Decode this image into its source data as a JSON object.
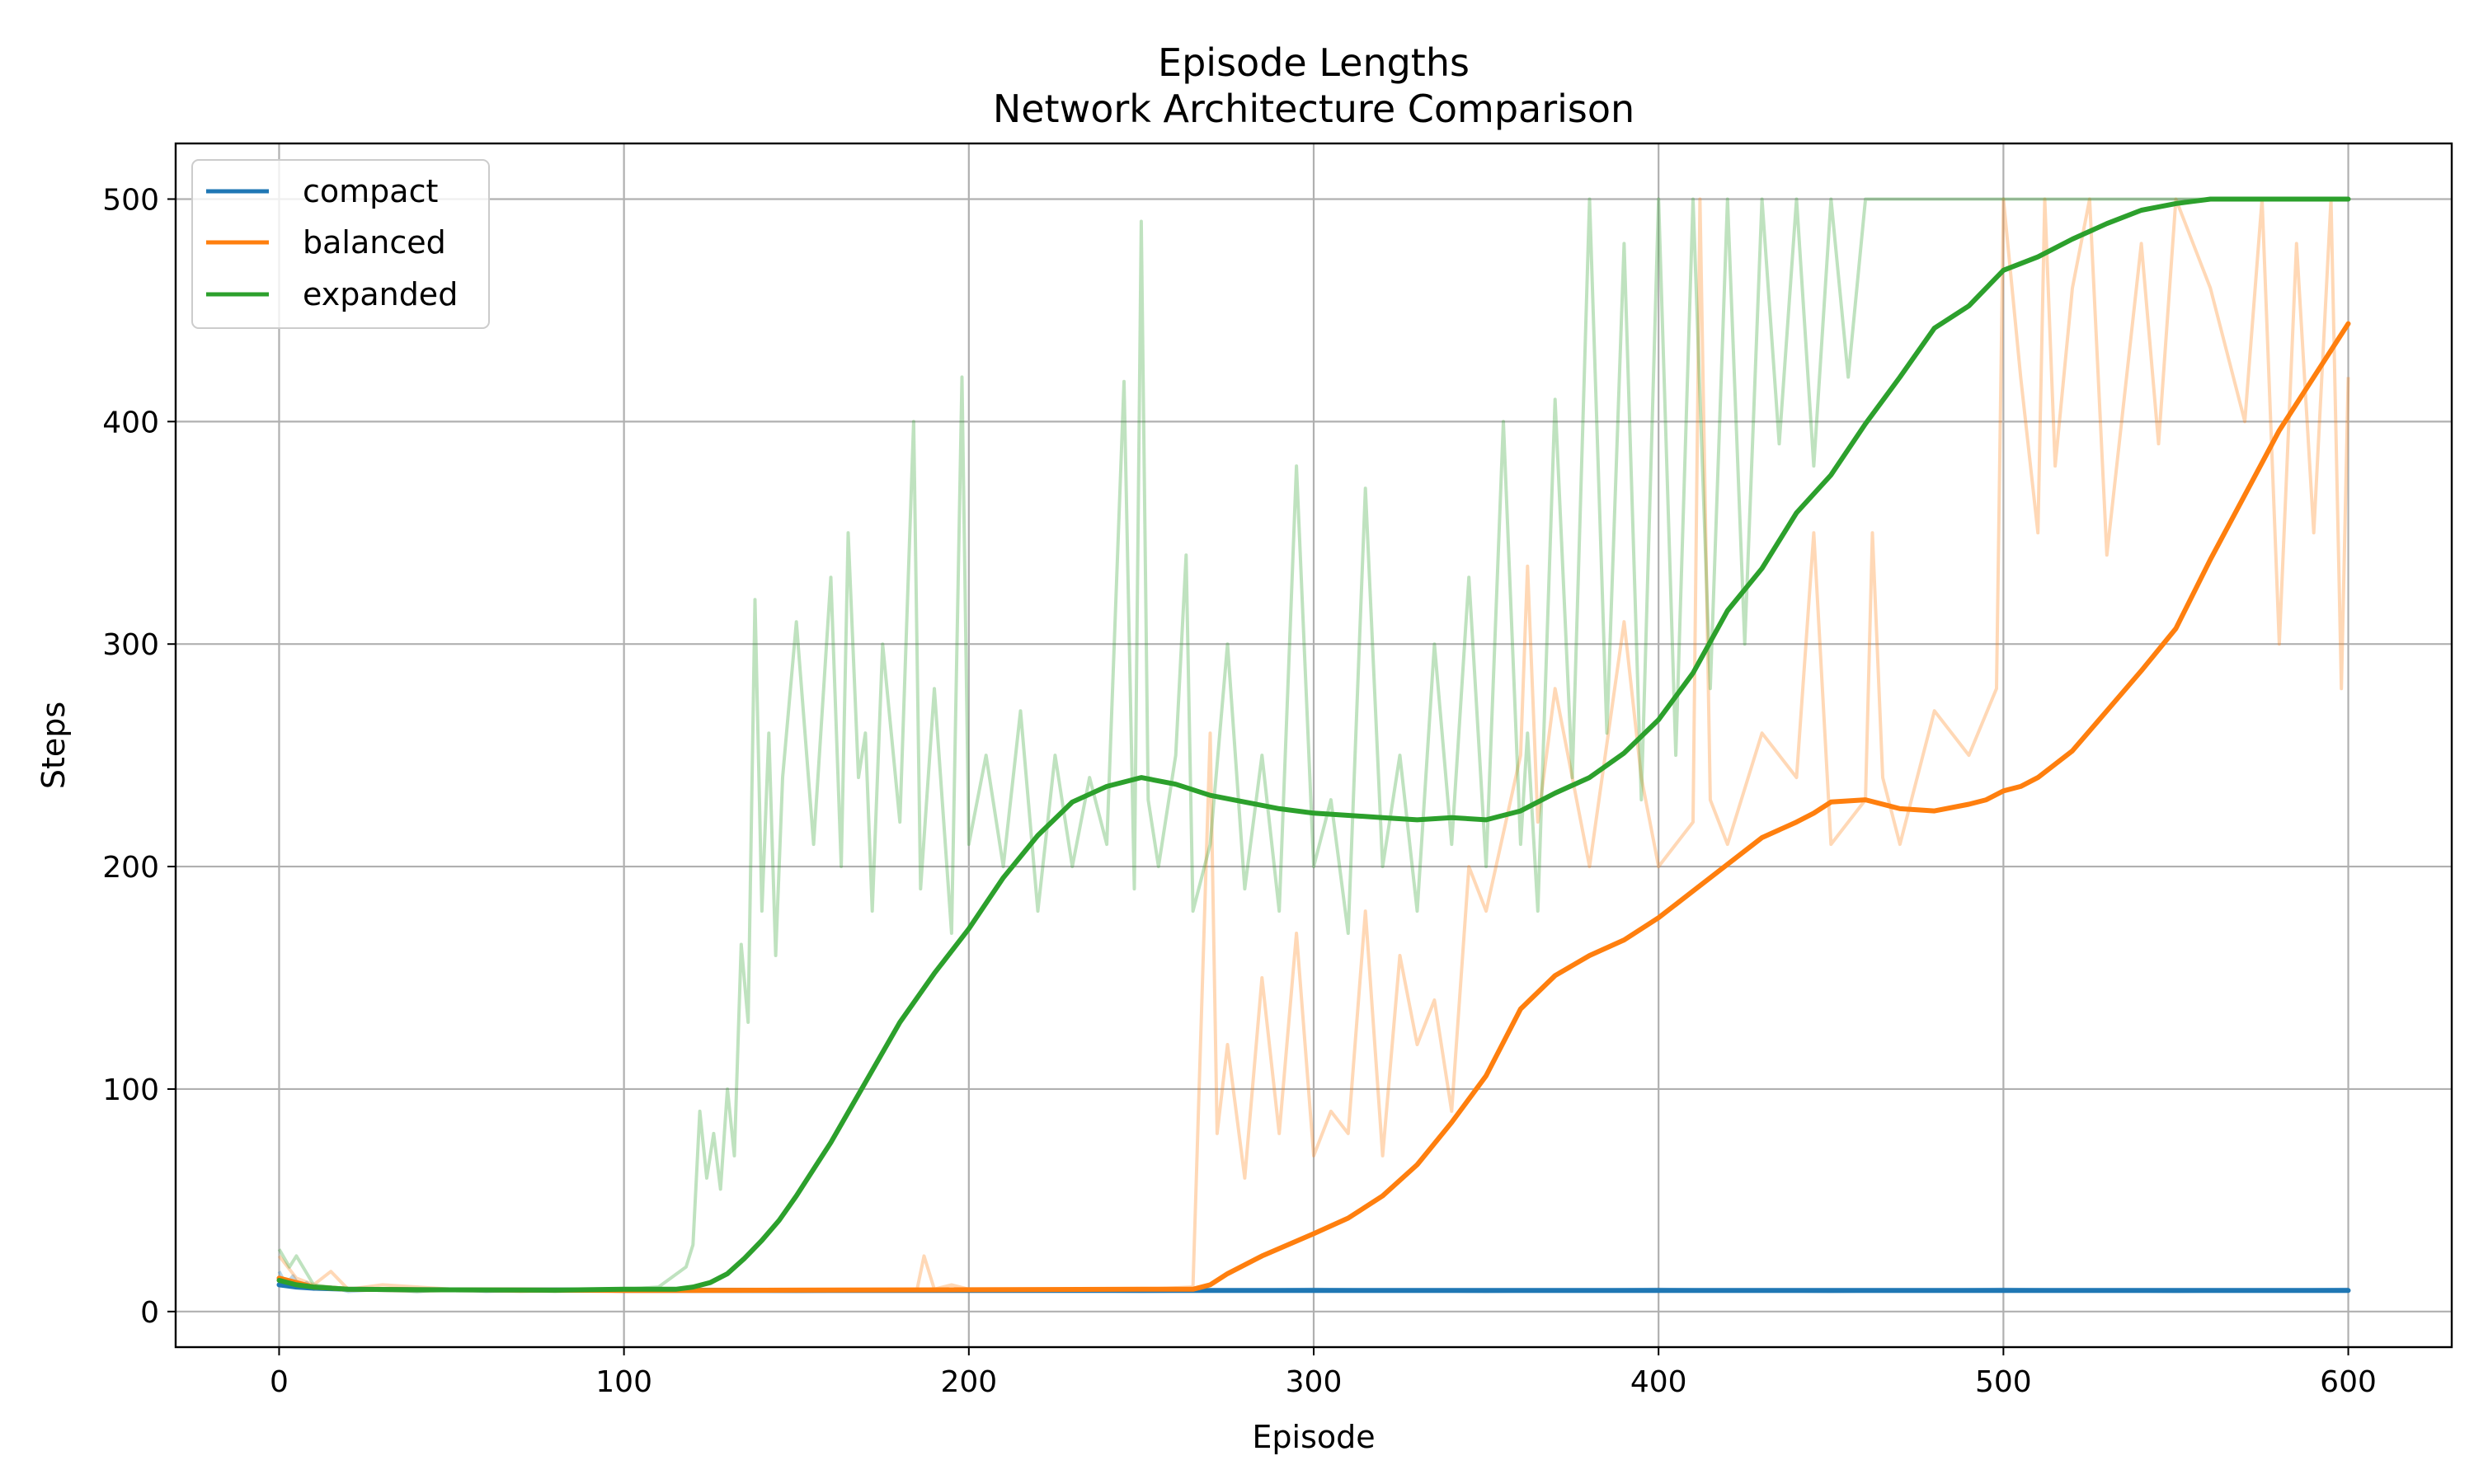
{
  "chart_data": {
    "type": "line",
    "title": "Episode Lengths",
    "subtitle": "Network Architecture Comparison",
    "xlabel": "Episode",
    "ylabel": "Steps",
    "xlim": [
      -30,
      630
    ],
    "ylim": [
      -16,
      525
    ],
    "xticks": [
      0,
      100,
      200,
      300,
      400,
      500,
      600
    ],
    "yticks": [
      0,
      100,
      200,
      300,
      400,
      500
    ],
    "grid": true,
    "legend_position": "top-left",
    "colors": {
      "compact": "#1f77b4",
      "balanced": "#ff7f0e",
      "expanded": "#2ca02c"
    },
    "series": [
      {
        "name": "compact",
        "smoothed": {
          "x": [
            0,
            5,
            10,
            20,
            40,
            60,
            80,
            100,
            150,
            200,
            250,
            300,
            350,
            400,
            450,
            500,
            550,
            600
          ],
          "y": [
            12,
            11,
            10.5,
            10,
            9.8,
            9.7,
            9.7,
            9.6,
            9.5,
            9.5,
            9.5,
            9.5,
            9.5,
            9.5,
            9.5,
            9.5,
            9.5,
            9.5
          ]
        },
        "raw": {
          "x": [
            0,
            2,
            4,
            6,
            8,
            10,
            15,
            20,
            30,
            40,
            50,
            60,
            80,
            100,
            150,
            200,
            250,
            300,
            350,
            400,
            450,
            500,
            550,
            600
          ],
          "y": [
            18,
            12,
            16,
            11,
            13,
            10,
            11,
            9,
            10,
            9,
            10,
            9,
            10,
            9,
            9,
            10,
            9,
            10,
            9,
            10,
            9,
            10,
            9,
            10
          ]
        }
      },
      {
        "name": "balanced",
        "smoothed": {
          "x": [
            0,
            5,
            10,
            20,
            40,
            60,
            80,
            100,
            120,
            150,
            200,
            250,
            265,
            270,
            275,
            285,
            300,
            310,
            315,
            320,
            330,
            340,
            350,
            360,
            370,
            380,
            390,
            400,
            410,
            420,
            430,
            440,
            445,
            450,
            460,
            470,
            480,
            490,
            495,
            500,
            505,
            510,
            520,
            530,
            540,
            550,
            560,
            570,
            580,
            590,
            600
          ],
          "y": [
            15,
            13,
            11,
            10,
            9.8,
            9.7,
            9.6,
            9.5,
            9.5,
            9.6,
            9.8,
            10,
            10,
            12,
            17,
            25,
            35,
            42,
            47,
            52,
            66,
            85,
            106,
            136,
            151,
            160,
            167,
            177,
            189,
            201,
            213,
            220,
            224,
            229,
            230,
            226,
            225,
            228,
            230,
            234,
            236,
            240,
            252,
            270,
            288,
            307,
            338,
            367,
            396,
            420,
            444
          ]
        },
        "raw": {
          "x": [
            0,
            5,
            10,
            15,
            20,
            30,
            50,
            70,
            100,
            150,
            185,
            187,
            190,
            195,
            200,
            210,
            250,
            265,
            270,
            272,
            275,
            280,
            285,
            290,
            295,
            300,
            305,
            310,
            315,
            320,
            325,
            330,
            335,
            340,
            345,
            350,
            360,
            362,
            365,
            370,
            380,
            390,
            395,
            400,
            410,
            412,
            415,
            420,
            430,
            440,
            445,
            450,
            460,
            462,
            465,
            470,
            480,
            490,
            498,
            500,
            505,
            510,
            512,
            515,
            520,
            525,
            530,
            540,
            545,
            550,
            560,
            570,
            575,
            580,
            585,
            590,
            595,
            598,
            600
          ],
          "y": [
            25,
            15,
            12,
            18,
            10,
            12,
            10,
            9,
            10,
            10,
            10,
            25,
            10,
            12,
            10,
            10,
            10,
            11,
            260,
            80,
            120,
            60,
            150,
            80,
            170,
            70,
            90,
            80,
            180,
            70,
            160,
            120,
            140,
            90,
            200,
            180,
            250,
            335,
            220,
            280,
            200,
            310,
            240,
            200,
            220,
            500,
            230,
            210,
            260,
            240,
            350,
            210,
            230,
            350,
            240,
            210,
            270,
            250,
            280,
            500,
            420,
            350,
            500,
            380,
            460,
            500,
            340,
            480,
            390,
            500,
            460,
            400,
            500,
            300,
            480,
            350,
            500,
            280,
            420
          ]
        }
      },
      {
        "name": "expanded",
        "smoothed": {
          "x": [
            0,
            5,
            10,
            20,
            40,
            60,
            80,
            100,
            110,
            115,
            120,
            125,
            130,
            135,
            140,
            145,
            150,
            160,
            170,
            180,
            190,
            200,
            210,
            220,
            230,
            240,
            250,
            260,
            270,
            280,
            290,
            300,
            310,
            320,
            330,
            340,
            350,
            360,
            370,
            380,
            390,
            400,
            410,
            420,
            430,
            440,
            450,
            460,
            470,
            480,
            490,
            500,
            510,
            520,
            530,
            540,
            550,
            555,
            560,
            565,
            600
          ],
          "y": [
            14,
            12,
            11,
            10,
            9.8,
            9.7,
            9.6,
            10,
            10,
            10,
            11,
            13,
            17,
            24,
            32,
            41,
            52,
            76,
            103,
            130,
            152,
            172,
            195,
            214,
            229,
            236,
            240,
            237,
            232,
            229,
            226,
            224,
            223,
            222,
            221,
            222,
            221,
            225,
            233,
            240,
            251,
            266,
            287,
            315,
            334,
            359,
            376,
            399,
            420,
            442,
            452,
            468,
            474,
            482,
            489,
            495,
            498,
            499,
            500,
            500,
            500
          ]
        },
        "raw": {
          "x": [
            0,
            3,
            5,
            10,
            20,
            40,
            60,
            80,
            100,
            110,
            118,
            120,
            122,
            124,
            126,
            128,
            130,
            132,
            134,
            136,
            138,
            140,
            142,
            144,
            146,
            150,
            155,
            160,
            163,
            165,
            168,
            170,
            172,
            175,
            180,
            184,
            186,
            190,
            195,
            198,
            200,
            205,
            210,
            215,
            220,
            225,
            230,
            235,
            240,
            245,
            248,
            250,
            252,
            255,
            260,
            263,
            265,
            270,
            275,
            280,
            285,
            290,
            295,
            300,
            305,
            310,
            315,
            320,
            325,
            330,
            335,
            340,
            345,
            350,
            355,
            360,
            362,
            365,
            370,
            375,
            380,
            385,
            390,
            395,
            400,
            405,
            410,
            415,
            420,
            425,
            430,
            435,
            440,
            445,
            450,
            455,
            460,
            470,
            480,
            490,
            500,
            550,
            600
          ],
          "y": [
            28,
            20,
            25,
            12,
            10,
            9,
            10,
            9,
            10,
            11,
            20,
            30,
            90,
            60,
            80,
            55,
            100,
            70,
            165,
            130,
            320,
            180,
            260,
            160,
            240,
            310,
            210,
            330,
            200,
            350,
            240,
            260,
            180,
            300,
            220,
            400,
            190,
            280,
            170,
            420,
            210,
            250,
            200,
            270,
            180,
            250,
            200,
            240,
            210,
            418,
            190,
            490,
            230,
            200,
            250,
            340,
            180,
            210,
            300,
            190,
            250,
            180,
            380,
            200,
            230,
            170,
            370,
            200,
            250,
            180,
            300,
            210,
            330,
            200,
            400,
            210,
            260,
            180,
            410,
            240,
            500,
            260,
            480,
            230,
            500,
            250,
            500,
            280,
            500,
            300,
            500,
            390,
            500,
            380,
            500,
            420,
            500,
            500,
            500,
            500,
            500,
            500,
            500
          ]
        }
      }
    ]
  }
}
